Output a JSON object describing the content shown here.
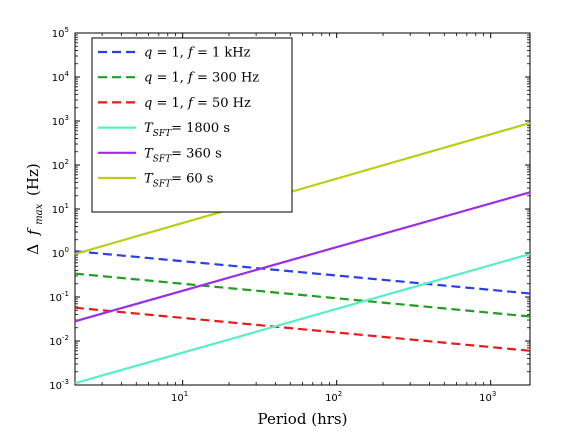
{
  "chart_data": {
    "type": "line",
    "xlabel": "Period (hrs)",
    "ylabel": "Δ f_max (Hz)",
    "ylabel_parts": {
      "delta": "Δ",
      "f": "f",
      "sub": "max",
      "unit": "(Hz)"
    },
    "x_scale": "log",
    "y_scale": "log",
    "xlim": [
      2,
      1800
    ],
    "ylim": [
      0.001,
      100000
    ],
    "x_ticks": [
      {
        "value": 10,
        "base": "10",
        "exp": "1"
      },
      {
        "value": 100,
        "base": "10",
        "exp": "2"
      },
      {
        "value": 1000,
        "base": "10",
        "exp": "3"
      }
    ],
    "y_ticks": [
      {
        "value": 0.001,
        "base": "10",
        "exp": "-3"
      },
      {
        "value": 0.01,
        "base": "10",
        "exp": "-2"
      },
      {
        "value": 0.1,
        "base": "10",
        "exp": "-1"
      },
      {
        "value": 1,
        "base": "10",
        "exp": "0"
      },
      {
        "value": 10,
        "base": "10",
        "exp": "1"
      },
      {
        "value": 100,
        "base": "10",
        "exp": "2"
      },
      {
        "value": 1000,
        "base": "10",
        "exp": "3"
      },
      {
        "value": 10000,
        "base": "10",
        "exp": "4"
      },
      {
        "value": 100000,
        "base": "10",
        "exp": "5"
      }
    ],
    "grid": false,
    "legend_position": "top-left",
    "series": [
      {
        "name": "q = 1, f = 1 kHz",
        "label_parts": [
          "q",
          " = 1,  ",
          "f",
          " = 1 kHz"
        ],
        "color": "#2b3fe6",
        "dash": true,
        "x": [
          2,
          1800
        ],
        "y": [
          1.1,
          0.12
        ]
      },
      {
        "name": "q = 1, f = 300 Hz",
        "label_parts": [
          "q",
          " = 1,  ",
          "f",
          " = 300 Hz"
        ],
        "color": "#1f9e1f",
        "dash": true,
        "x": [
          2,
          1800
        ],
        "y": [
          0.34,
          0.036
        ]
      },
      {
        "name": "q = 1, f = 50 Hz",
        "label_parts": [
          "q",
          " = 1,  ",
          "f",
          " = 50 Hz"
        ],
        "color": "#e61c1c",
        "dash": true,
        "x": [
          2,
          1800
        ],
        "y": [
          0.057,
          0.006
        ]
      },
      {
        "name": "T_SFT = 1800 s",
        "label_parts": [
          "T",
          "SFT",
          "= 1800 s"
        ],
        "color": "#55f0c8",
        "dash": false,
        "x": [
          2,
          1800
        ],
        "y": [
          0.0011,
          0.95
        ]
      },
      {
        "name": "T_SFT = 360 s",
        "label_parts": [
          "T",
          "SFT",
          "= 360 s"
        ],
        "color": "#9a2ee6",
        "dash": false,
        "x": [
          2,
          1800
        ],
        "y": [
          0.028,
          24
        ]
      },
      {
        "name": "T_SFT = 60 s",
        "label_parts": [
          "T",
          "SFT",
          "= 60 s"
        ],
        "color": "#b8cf16",
        "dash": false,
        "x": [
          2,
          1800
        ],
        "y": [
          0.95,
          900
        ]
      }
    ]
  }
}
